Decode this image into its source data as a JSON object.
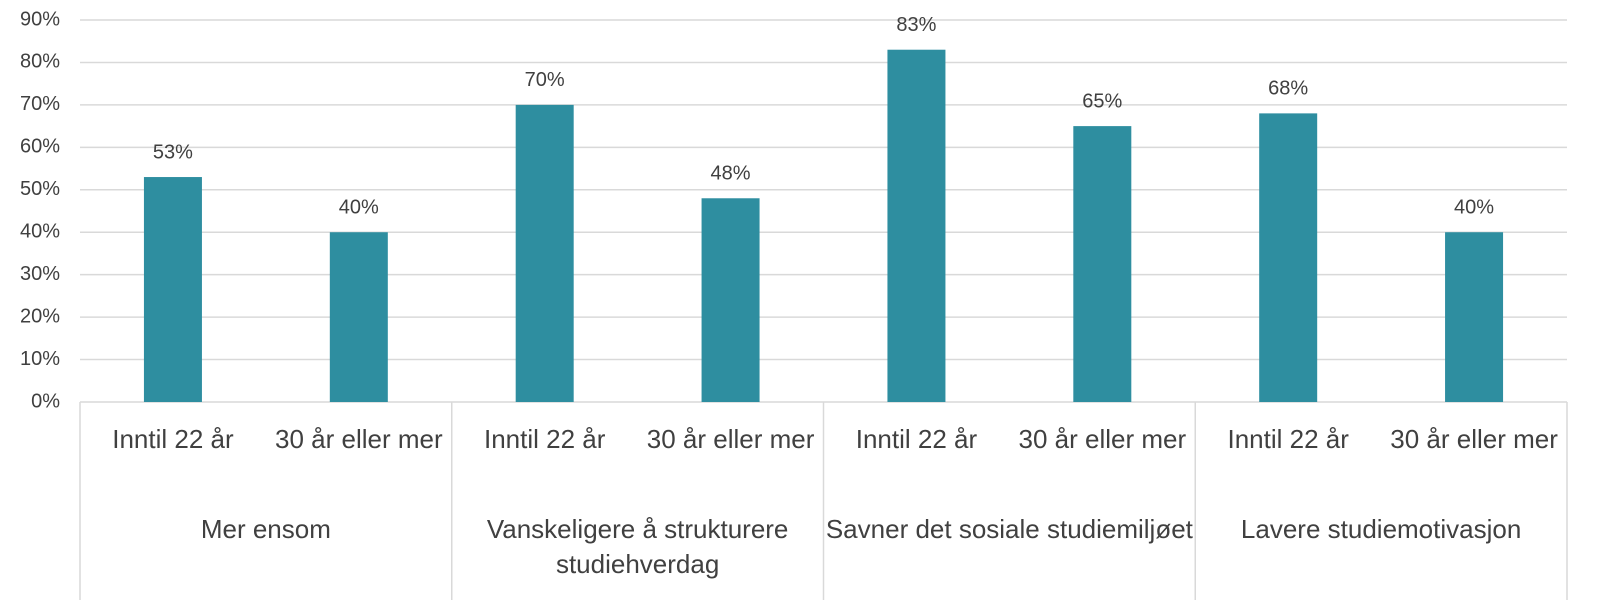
{
  "chart_data": {
    "type": "bar",
    "color": "#2e8ea0",
    "grid": true,
    "ylim": [
      0,
      90
    ],
    "yticks": [
      {
        "value": 0,
        "label": "0%"
      },
      {
        "value": 10,
        "label": "10%"
      },
      {
        "value": 20,
        "label": "20%"
      },
      {
        "value": 30,
        "label": "30%"
      },
      {
        "value": 40,
        "label": "40%"
      },
      {
        "value": 50,
        "label": "50%"
      },
      {
        "value": 60,
        "label": "60%"
      },
      {
        "value": 70,
        "label": "70%"
      },
      {
        "value": 80,
        "label": "80%"
      },
      {
        "value": 90,
        "label": "90%"
      }
    ],
    "groups": [
      {
        "name": "Mer ensom",
        "categories": [
          "Inntil 22 år",
          "30 år eller mer"
        ],
        "values": [
          53,
          40
        ],
        "value_labels": [
          "53%",
          "40%"
        ]
      },
      {
        "name": "Vanskeligere å strukturere studiehverdag",
        "categories": [
          "Inntil 22 år",
          "30 år eller mer"
        ],
        "values": [
          70,
          48
        ],
        "value_labels": [
          "70%",
          "48%"
        ]
      },
      {
        "name": "Savner det sosiale studiemiljøet",
        "categories": [
          "Inntil 22 år",
          "30 år eller mer"
        ],
        "values": [
          83,
          65
        ],
        "value_labels": [
          "83%",
          "65%"
        ]
      },
      {
        "name": "Lavere studiemotivasjon",
        "categories": [
          "Inntil 22 år",
          "30 år eller mer"
        ],
        "values": [
          68,
          40
        ],
        "value_labels": [
          "68%",
          "40%"
        ]
      }
    ]
  }
}
